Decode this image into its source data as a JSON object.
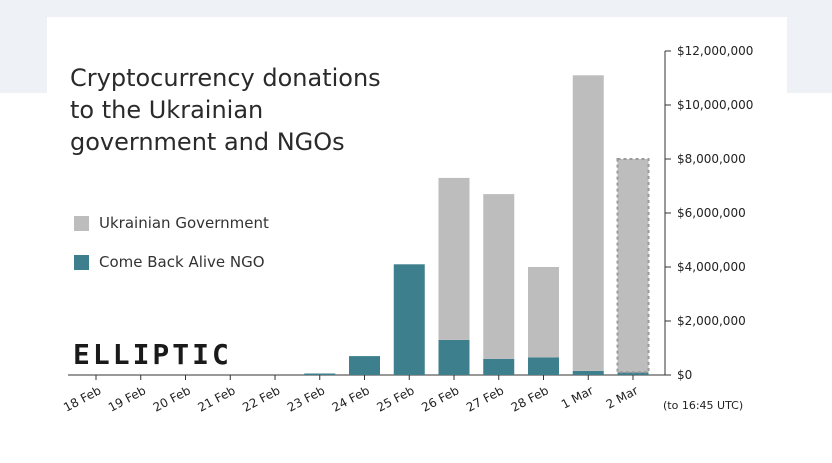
{
  "page": {
    "logo_text": "ELLIPTIC"
  },
  "chart_data": {
    "type": "bar",
    "stacked": true,
    "title": "Cryptocurrency donations\nto the Ukrainian\ngovernment and NGOs",
    "categories": [
      "18 Feb",
      "19 Feb",
      "20 Feb",
      "21 Feb",
      "22 Feb",
      "23 Feb",
      "24 Feb",
      "25 Feb",
      "26 Feb",
      "27 Feb",
      "28 Feb",
      "1 Mar",
      "2 Mar"
    ],
    "series": [
      {
        "name": "Come Back Alive NGO",
        "color": "#3d7f8c",
        "values": [
          0,
          0,
          0,
          0,
          0,
          50000,
          700000,
          4100000,
          1300000,
          600000,
          650000,
          150000,
          100000
        ]
      },
      {
        "name": "Ukrainian Government",
        "color": "#bdbdbd",
        "values": [
          0,
          0,
          0,
          0,
          0,
          0,
          0,
          0,
          6000000,
          6100000,
          3350000,
          10950000,
          7900000
        ]
      }
    ],
    "partial_category": "2 Mar",
    "partial_note": "(to 16:45 UTC)",
    "ylim": [
      0,
      12000000
    ],
    "yticks": [
      0,
      2000000,
      4000000,
      6000000,
      8000000,
      10000000,
      12000000
    ],
    "ytick_labels": [
      "$0",
      "$2,000,000",
      "$4,000,000",
      "$6,000,000",
      "$8,000,000",
      "$10,000,000",
      "$12,000,000"
    ],
    "y_axis_side": "right",
    "legend_placement": "left",
    "grid": false
  }
}
